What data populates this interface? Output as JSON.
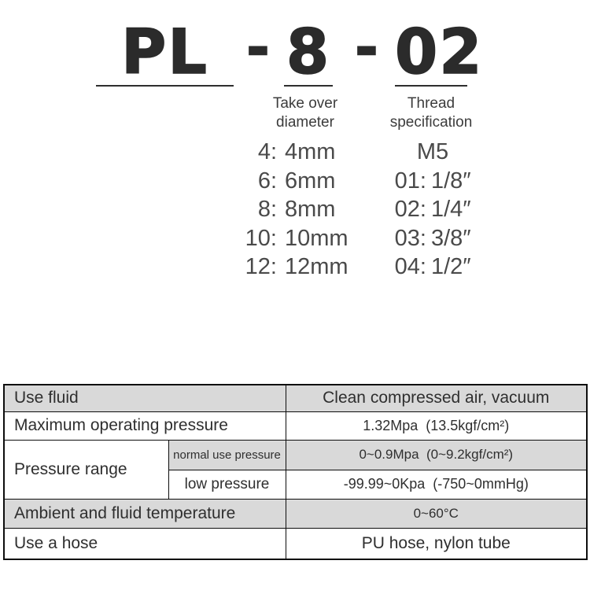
{
  "colors": {
    "title": "#2b2b2b",
    "row_shade": "#d9d9d9",
    "table_border": "#0d0d0d",
    "list_text": "#4a4a4a"
  },
  "model_code": {
    "full": "PL-8-02",
    "prefix": "PL",
    "separator": "-",
    "diameter_code": "8",
    "thread_code": "02"
  },
  "diameter_legend": {
    "title_line1": "Take over",
    "title_line2": "diameter",
    "options": [
      {
        "code": "4:",
        "value": "4mm"
      },
      {
        "code": "6:",
        "value": "6mm"
      },
      {
        "code": "8:",
        "value": "8mm"
      },
      {
        "code": "10:",
        "value": "10mm"
      },
      {
        "code": "12:",
        "value": "12mm"
      }
    ]
  },
  "thread_legend": {
    "title_line1": "Thread",
    "title_line2": "specification",
    "options": [
      {
        "code": "",
        "value": "M5"
      },
      {
        "code": "01:",
        "value": "1/8″"
      },
      {
        "code": "02:",
        "value": "1/4″"
      },
      {
        "code": "03:",
        "value": "3/8″"
      },
      {
        "code": "04:",
        "value": "1/2″"
      }
    ]
  },
  "spec_table": {
    "rows": [
      {
        "label": "Use fluid",
        "value": "Clean compressed air, vacuum"
      },
      {
        "label": "Maximum operating pressure",
        "value": "1.32Mpa  (13.5kgf/cm²)"
      },
      {
        "label": "Pressure range",
        "sub_label": "normal use pressure",
        "value": "0~0.9Mpa  (0~9.2kgf/cm²)"
      },
      {
        "sub_label": "low pressure",
        "value": "-99.99~0Kpa  (-750~0mmHg)"
      },
      {
        "label": "Ambient and fluid temperature",
        "value": "0~60°C"
      },
      {
        "label": "Use a hose",
        "value": "PU hose, nylon tube"
      }
    ]
  }
}
